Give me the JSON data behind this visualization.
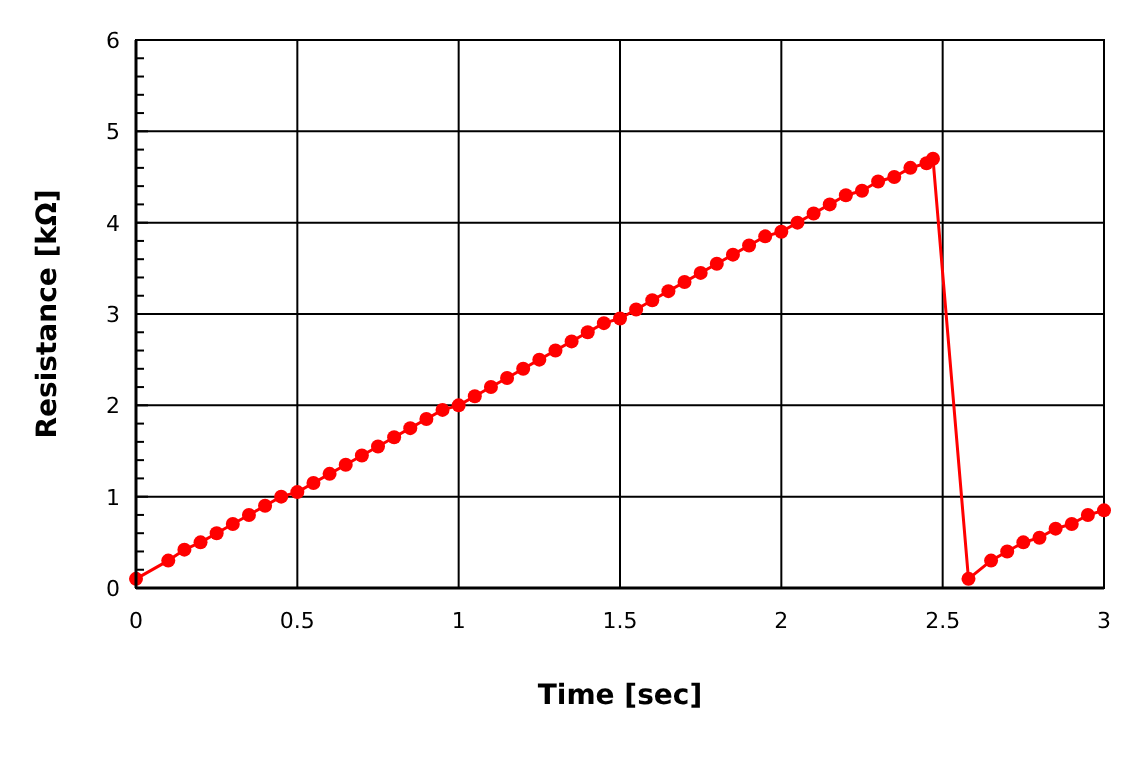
{
  "chart_data": {
    "type": "line",
    "xlabel": "Time [sec]",
    "ylabel": "Resistance [kΩ]",
    "xlim": [
      0,
      3
    ],
    "xticks": [
      0,
      0.5,
      1,
      1.5,
      2,
      2.5,
      3
    ],
    "ylim": [
      0,
      6
    ],
    "yticks": [
      0,
      {
        "value": 0.2,
        "label": null
      },
      {
        "value": 0.4,
        "label": null
      },
      {
        "value": 0.6,
        "label": null
      },
      {
        "value": 0.8,
        "label": null
      },
      1,
      {
        "value": 1.2,
        "label": null
      },
      {
        "value": 1.4,
        "label": null
      },
      {
        "value": 1.6,
        "label": null
      },
      {
        "value": 1.8,
        "label": null
      },
      2,
      {
        "value": 2.2,
        "label": null
      },
      {
        "value": 2.4,
        "label": null
      },
      {
        "value": 2.6,
        "label": null
      },
      {
        "value": 2.8,
        "label": null
      },
      3,
      {
        "value": 3.2,
        "label": null
      },
      {
        "value": 3.4,
        "label": null
      },
      {
        "value": 3.6,
        "label": null
      },
      {
        "value": 3.8,
        "label": null
      },
      4,
      {
        "value": 4.2,
        "label": null
      },
      {
        "value": 4.4,
        "label": null
      },
      {
        "value": 4.6,
        "label": null
      },
      {
        "value": 4.8,
        "label": null
      },
      5,
      {
        "value": 5.2,
        "label": null
      },
      {
        "value": 5.4,
        "label": null
      },
      {
        "value": 5.6,
        "label": null
      },
      {
        "value": 5.8,
        "label": null
      },
      6
    ],
    "grid": true,
    "marker": "circle",
    "line_style": "solid",
    "series": [
      {
        "color": "#ff0000",
        "x": [
          0,
          0.1,
          0.15,
          0.2,
          0.25,
          0.3,
          0.35,
          0.4,
          0.45,
          0.5,
          0.55,
          0.6,
          0.65,
          0.7,
          0.75,
          0.8,
          0.85,
          0.9,
          0.95,
          1.0,
          1.05,
          1.1,
          1.15,
          1.2,
          1.25,
          1.3,
          1.35,
          1.4,
          1.45,
          1.5,
          1.55,
          1.6,
          1.65,
          1.7,
          1.75,
          1.8,
          1.85,
          1.9,
          1.95,
          2.0,
          2.05,
          2.1,
          2.15,
          2.2,
          2.25,
          2.3,
          2.35,
          2.4,
          2.45,
          2.47,
          2.58,
          2.65,
          2.7,
          2.75,
          2.8,
          2.85,
          2.9,
          2.95,
          3.0
        ],
        "values": [
          0.1,
          0.3,
          0.42,
          0.5,
          0.6,
          0.7,
          0.8,
          0.9,
          1.0,
          1.05,
          1.15,
          1.25,
          1.35,
          1.45,
          1.55,
          1.65,
          1.75,
          1.85,
          1.95,
          2.0,
          2.1,
          2.2,
          2.3,
          2.4,
          2.5,
          2.6,
          2.7,
          2.8,
          2.9,
          2.95,
          3.05,
          3.15,
          3.25,
          3.35,
          3.45,
          3.55,
          3.65,
          3.75,
          3.85,
          3.9,
          4.0,
          4.1,
          4.2,
          4.3,
          4.35,
          4.45,
          4.5,
          4.6,
          4.65,
          4.7,
          0.1,
          0.3,
          0.4,
          0.5,
          0.55,
          0.65,
          0.7,
          0.8,
          0.85
        ]
      }
    ]
  }
}
